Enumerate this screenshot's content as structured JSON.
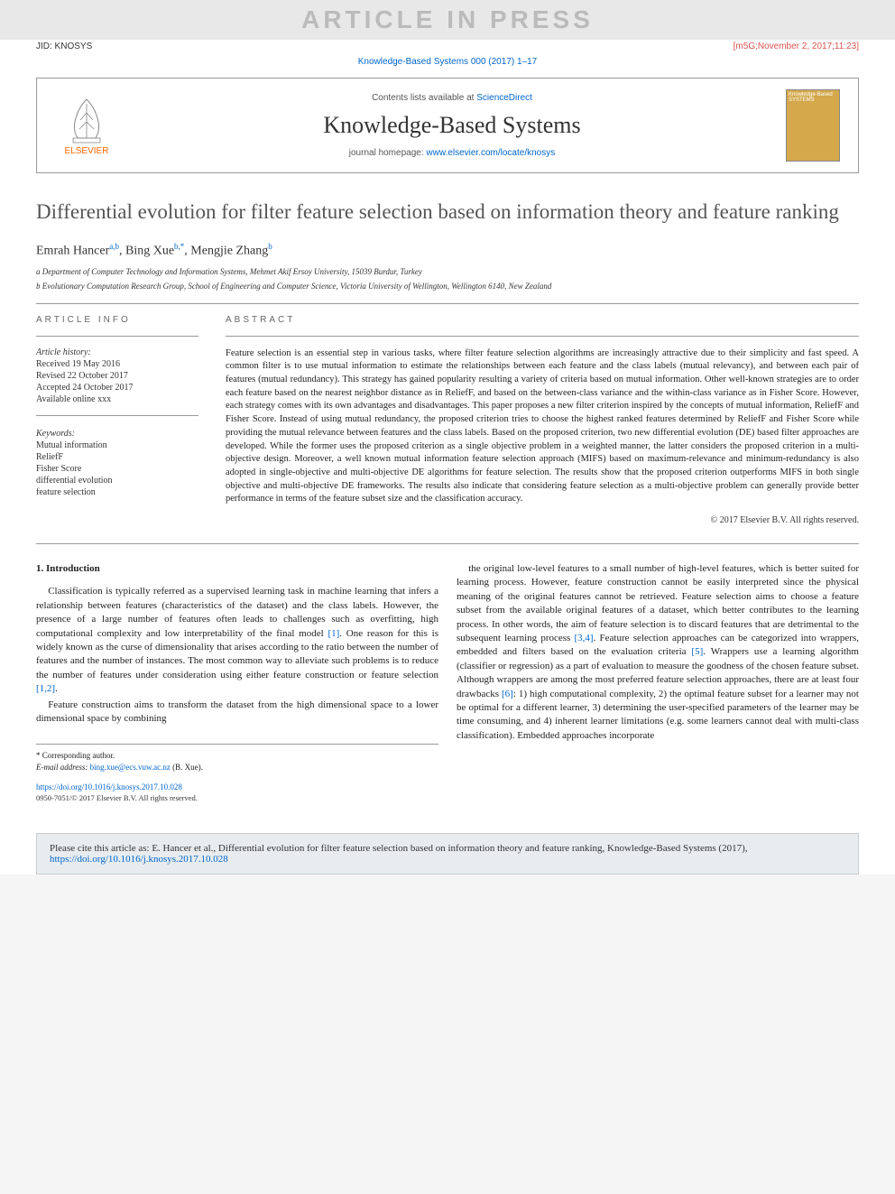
{
  "watermark": "ARTICLE IN PRESS",
  "header": {
    "jid": "JID: KNOSYS",
    "meta": "[m5G;November 2, 2017;11:23]"
  },
  "citation_top": {
    "prefix": "Knowledge-Based Systems 000 (2017) 1–17"
  },
  "journal_box": {
    "elsevier": "ELSEVIER",
    "contents_prefix": "Contents lists available at ",
    "contents_link": "ScienceDirect",
    "journal_name": "Knowledge-Based Systems",
    "homepage_prefix": "journal homepage: ",
    "homepage_link": "www.elsevier.com/locate/knosys",
    "cover_text": "Knowledge-Based SYSTEMS"
  },
  "title": "Differential evolution for filter feature selection based on information theory and feature ranking",
  "authors_html": "Emrah Hancer<sup>a,b</sup>, Bing Xue<sup>b,*</sup>, Mengjie Zhang<sup>b</sup>",
  "affiliations": [
    "a Department of Computer Technology and Information Systems, Mehmet Akif Ersoy University, 15039 Burdur, Turkey",
    "b Evolutionary Computation Research Group, School of Engineering and Computer Science, Victoria University of Wellington, Wellington 6140, New Zealand"
  ],
  "info": {
    "heading": "ARTICLE INFO",
    "history_label": "Article history:",
    "history": [
      "Received 19 May 2016",
      "Revised 22 October 2017",
      "Accepted 24 October 2017",
      "Available online xxx"
    ],
    "keywords_label": "Keywords:",
    "keywords": [
      "Mutual information",
      "ReliefF",
      "Fisher Score",
      "differential evolution",
      "feature selection"
    ]
  },
  "abstract": {
    "heading": "ABSTRACT",
    "text": "Feature selection is an essential step in various tasks, where filter feature selection algorithms are increasingly attractive due to their simplicity and fast speed. A common filter is to use mutual information to estimate the relationships between each feature and the class labels (mutual relevancy), and between each pair of features (mutual redundancy). This strategy has gained popularity resulting a variety of criteria based on mutual information. Other well-known strategies are to order each feature based on the nearest neighbor distance as in ReliefF, and based on the between-class variance and the within-class variance as in Fisher Score. However, each strategy comes with its own advantages and disadvantages. This paper proposes a new filter criterion inspired by the concepts of mutual information, ReliefF and Fisher Score. Instead of using mutual redundancy, the proposed criterion tries to choose the highest ranked features determined by ReliefF and Fisher Score while providing the mutual relevance between features and the class labels. Based on the proposed criterion, two new differential evolution (DE) based filter approaches are developed. While the former uses the proposed criterion as a single objective problem in a weighted manner, the latter considers the proposed criterion in a multi-objective design. Moreover, a well known mutual information feature selection approach (MIFS) based on maximum-relevance and minimum-redundancy is also adopted in single-objective and multi-objective DE algorithms for feature selection. The results show that the proposed criterion outperforms MIFS in both single objective and multi-objective DE frameworks. The results also indicate that considering feature selection as a multi-objective problem can generally provide better performance in terms of the feature subset size and the classification accuracy.",
    "copyright": "© 2017 Elsevier B.V. All rights reserved."
  },
  "intro": {
    "heading": "1. Introduction",
    "p1": "Classification is typically referred as a supervised learning task in machine learning that infers a relationship between features (characteristics of the dataset) and the class labels. However, the presence of a large number of features often leads to challenges such as overfitting, high computational complexity and low interpretability of the final model [1]. One reason for this is widely known as the curse of dimensionality that arises according to the ratio between the number of features and the number of instances. The most common way to alleviate such problems is to reduce the number of features under consideration using either feature construction or feature selection [1,2].",
    "p2": "Feature construction aims to transform the dataset from the high dimensional space to a lower dimensional space by combining",
    "p3": "the original low-level features to a small number of high-level features, which is better suited for learning process. However, feature construction cannot be easily interpreted since the physical meaning of the original features cannot be retrieved. Feature selection aims to choose a feature subset from the available original features of a dataset, which better contributes to the learning process. In other words, the aim of feature selection is to discard features that are detrimental to the subsequent learning process [3,4]. Feature selection approaches can be categorized into wrappers, embedded and filters based on the evaluation criteria [5]. Wrappers use a learning algorithm (classifier or regression) as a part of evaluation to measure the goodness of the chosen feature subset. Although wrappers are among the most preferred feature selection approaches, there are at least four drawbacks [6]: 1) high computational complexity, 2) the optimal feature subset for a learner may not be optimal for a different learner, 3) determining the user-specified parameters of the learner may be time consuming, and 4) inherent learner limitations (e.g. some learners cannot deal with multi-class classification). Embedded approaches incorporate"
  },
  "footer": {
    "corr": "* Corresponding author.",
    "email_label": "E-mail address: ",
    "email": "bing.xue@ecs.vuw.ac.nz",
    "email_suffix": " (B. Xue).",
    "doi": "https://doi.org/10.1016/j.knosys.2017.10.028",
    "copyright": "0950-7051/© 2017 Elsevier B.V. All rights reserved."
  },
  "cite_box": {
    "text": "Please cite this article as: E. Hancer et al., Differential evolution for filter feature selection based on information theory and feature ranking, Knowledge-Based Systems (2017), ",
    "link": "https://doi.org/10.1016/j.knosys.2017.10.028"
  },
  "colors": {
    "link": "#0066cc",
    "watermark_bg": "#e8e8e8",
    "watermark_fg": "#bbbbbb",
    "orange": "#ff6600",
    "meta_red": "#d9534f",
    "cover_bg": "#d4a84b",
    "citebox_bg": "#e8ecef"
  }
}
